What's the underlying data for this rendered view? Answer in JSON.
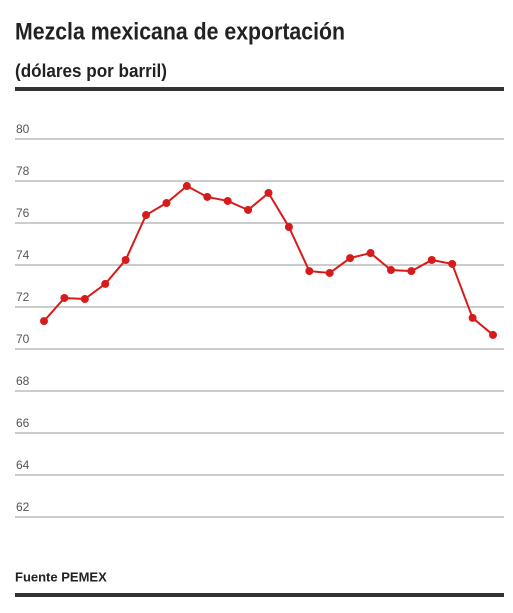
{
  "chart_data": {
    "type": "line",
    "title": "Mezcla mexicana de exportación",
    "subtitle": "(dólares por barril)",
    "source": "Fuente PEMEX",
    "categories": [
      null,
      null,
      null,
      null,
      null,
      null,
      null,
      null,
      null,
      null,
      null,
      null,
      null,
      null,
      null,
      null,
      null,
      null,
      null,
      null,
      null,
      null,
      null
    ],
    "series": [
      {
        "color": "#d71a1a",
        "values": [
          71.33,
          72.43,
          72.38,
          73.1,
          74.24,
          76.38,
          76.95,
          77.76,
          77.24,
          77.05,
          76.62,
          77.43,
          75.81,
          73.71,
          73.62,
          74.33,
          74.57,
          73.76,
          73.71,
          74.24,
          74.05,
          71.48,
          70.67
        ]
      }
    ],
    "ylim": [
      62,
      80
    ],
    "yticks": [
      62,
      64,
      66,
      68,
      70,
      72,
      74,
      76,
      78,
      80
    ],
    "grid": true
  }
}
